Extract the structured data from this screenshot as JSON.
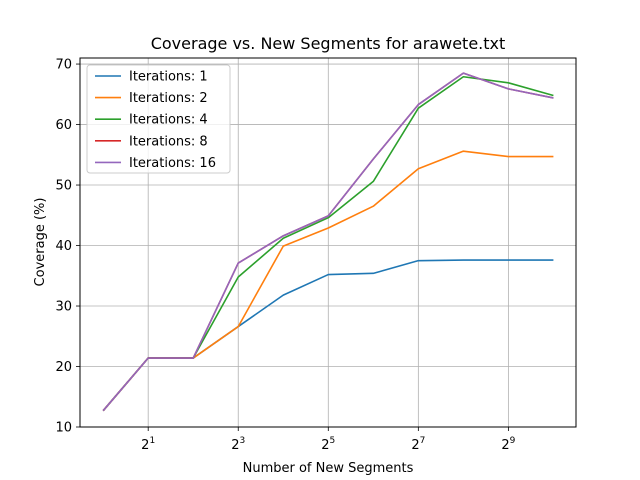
{
  "chart_data": {
    "type": "line",
    "title": "Coverage vs. New Segments for arawete.txt",
    "xlabel": "Number of New Segments",
    "ylabel": "Coverage (%)",
    "xscale": "log2",
    "x": [
      1,
      2,
      4,
      8,
      16,
      32,
      64,
      128,
      256,
      512,
      1024
    ],
    "xlim": [
      0.7,
      1450
    ],
    "ylim": [
      10,
      71
    ],
    "xticks": [
      {
        "value": 2,
        "base": "2",
        "exp": "1"
      },
      {
        "value": 8,
        "base": "2",
        "exp": "3"
      },
      {
        "value": 32,
        "base": "2",
        "exp": "5"
      },
      {
        "value": 128,
        "base": "2",
        "exp": "7"
      },
      {
        "value": 512,
        "base": "2",
        "exp": "9"
      }
    ],
    "yticks": [
      "10",
      "20",
      "30",
      "40",
      "50",
      "60",
      "70"
    ],
    "grid": true,
    "legend_position": "top-left",
    "series": [
      {
        "name": "Iterations: 1",
        "color": "#1f77b4",
        "values": [
          12.7,
          21.4,
          21.4,
          26.6,
          31.8,
          35.2,
          35.4,
          37.5,
          37.6,
          37.6,
          37.6
        ]
      },
      {
        "name": "Iterations: 2",
        "color": "#ff7f0e",
        "values": [
          12.7,
          21.4,
          21.4,
          26.6,
          39.9,
          42.9,
          46.5,
          52.7,
          55.6,
          54.7,
          54.7
        ]
      },
      {
        "name": "Iterations: 4",
        "color": "#2ca02c",
        "values": [
          12.7,
          21.4,
          21.4,
          34.8,
          41.2,
          44.6,
          50.6,
          62.7,
          67.9,
          66.9,
          64.8
        ]
      },
      {
        "name": "Iterations: 8",
        "color": "#d62728",
        "values": [
          12.7,
          21.4,
          21.4,
          37.1,
          41.6,
          44.9,
          54.3,
          63.3,
          68.5,
          65.9,
          64.4
        ]
      },
      {
        "name": "Iterations: 16",
        "color": "#9467bd",
        "values": [
          12.7,
          21.4,
          21.4,
          37.1,
          41.6,
          44.9,
          54.3,
          63.3,
          68.5,
          65.9,
          64.4
        ]
      }
    ]
  }
}
